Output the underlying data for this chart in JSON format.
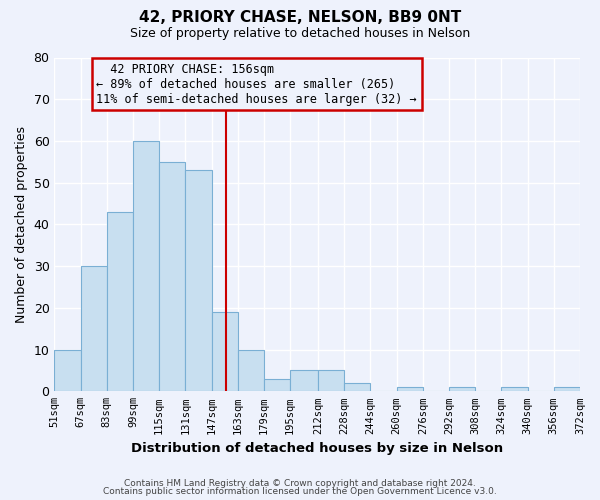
{
  "title": "42, PRIORY CHASE, NELSON, BB9 0NT",
  "subtitle": "Size of property relative to detached houses in Nelson",
  "xlabel": "Distribution of detached houses by size in Nelson",
  "ylabel": "Number of detached properties",
  "footer_line1": "Contains HM Land Registry data © Crown copyright and database right 2024.",
  "footer_line2": "Contains public sector information licensed under the Open Government Licence v3.0.",
  "bar_color": "#c8dff0",
  "bar_edge_color": "#7aafd4",
  "vline_color": "#cc0000",
  "vline_x": 156,
  "annotation_title": "42 PRIORY CHASE: 156sqm",
  "annotation_line2": "← 89% of detached houses are smaller (265)",
  "annotation_line3": "11% of semi-detached houses are larger (32) →",
  "box_edge_color": "#cc0000",
  "bin_edges": [
    51,
    67,
    83,
    99,
    115,
    131,
    147,
    163,
    179,
    195,
    212,
    228,
    244,
    260,
    276,
    292,
    308,
    324,
    340,
    356,
    372
  ],
  "bin_counts": [
    10,
    30,
    43,
    60,
    55,
    53,
    19,
    10,
    3,
    5,
    5,
    2,
    0,
    1,
    0,
    1,
    0,
    1,
    0,
    1
  ],
  "ylim": [
    0,
    80
  ],
  "yticks": [
    0,
    10,
    20,
    30,
    40,
    50,
    60,
    70,
    80
  ],
  "background_color": "#eef2fc",
  "grid_color": "#ffffff",
  "font_family": "monospace"
}
